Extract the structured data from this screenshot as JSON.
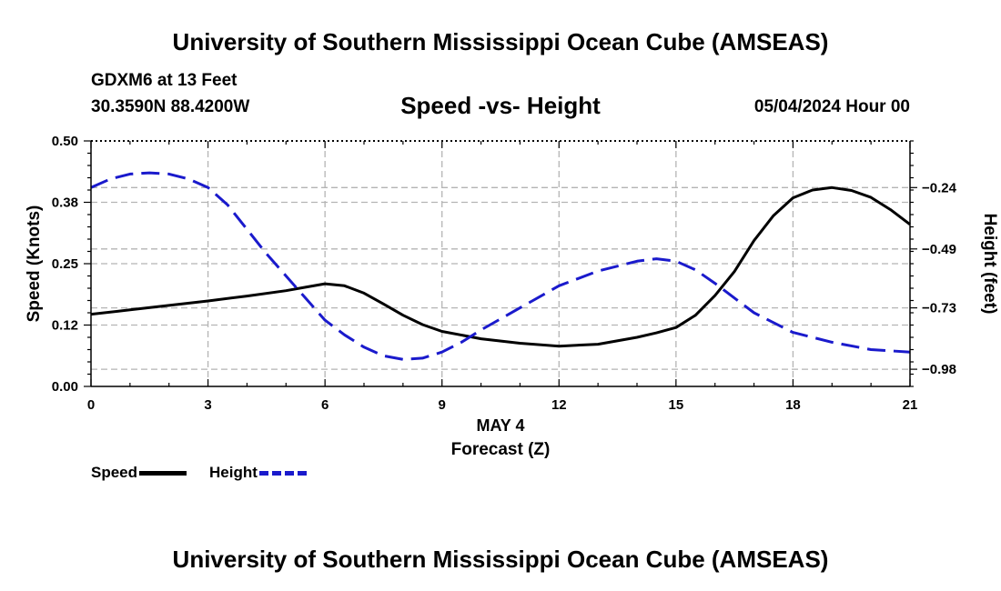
{
  "header": {
    "title": "University of Southern Mississippi Ocean Cube (AMSEAS)",
    "station": "GDXM6 at 13 Feet",
    "coords": "30.3590N  88.4200W",
    "subtitle": "Speed -vs- Height",
    "datestamp": "05/04/2024 Hour 00"
  },
  "footer": {
    "title": "University of Southern Mississippi Ocean Cube (AMSEAS)"
  },
  "legend": {
    "speed_label": "Speed",
    "height_label": "Height"
  },
  "colors": {
    "speed": "#000000",
    "height": "#1a1acc",
    "grid": "#b4b4b4"
  },
  "chart_data": {
    "type": "line",
    "title": "Speed -vs- Height",
    "xlabel": "Forecast (Z)",
    "xlabel_date": "MAY 4",
    "ylabel_left": "Speed (Knots)",
    "ylabel_right": "Height (feet)",
    "xlim": [
      0,
      21
    ],
    "x_ticks": [
      0,
      3,
      6,
      9,
      12,
      15,
      18,
      21
    ],
    "x_tick_labels": [
      "0",
      "3",
      "6",
      "9",
      "12",
      "15",
      "18",
      "21"
    ],
    "ylim_left": [
      0,
      0.5
    ],
    "y_left_ticks": [
      0,
      0.125,
      0.25,
      0.375,
      0.5
    ],
    "y_left_tick_labels": [
      "0.00",
      "0.12",
      "0.25",
      "0.38",
      "0.50"
    ],
    "ylim_right": [
      -1.05,
      -0.05
    ],
    "y_right_ticks": [
      -0.98,
      -0.73,
      -0.49,
      -0.24
    ],
    "y_right_tick_labels": [
      "−0.98",
      "−0.73",
      "−0.49",
      "−0.24"
    ],
    "grid": true,
    "legend_position": "bottom-left",
    "series": [
      {
        "name": "Speed",
        "axis": "left",
        "style": "solid",
        "x": [
          0,
          1,
          2,
          3,
          4,
          5,
          5.5,
          6,
          6.5,
          7,
          7.5,
          8,
          8.5,
          9,
          10,
          11,
          12,
          13,
          14,
          14.5,
          15,
          15.5,
          16,
          16.5,
          17,
          17.5,
          18,
          18.5,
          19,
          19.5,
          20,
          20.5,
          21
        ],
        "values": [
          0.147,
          0.156,
          0.165,
          0.174,
          0.184,
          0.195,
          0.202,
          0.209,
          0.205,
          0.19,
          0.168,
          0.145,
          0.126,
          0.112,
          0.097,
          0.088,
          0.082,
          0.086,
          0.1,
          0.109,
          0.12,
          0.145,
          0.185,
          0.234,
          0.297,
          0.348,
          0.384,
          0.4,
          0.405,
          0.399,
          0.385,
          0.36,
          0.33
        ]
      },
      {
        "name": "Height",
        "axis": "right",
        "style": "dashed",
        "x": [
          0,
          0.5,
          1,
          1.5,
          2,
          2.5,
          3,
          3.5,
          4,
          4.5,
          5,
          5.5,
          6,
          6.5,
          7,
          7.5,
          8,
          8.5,
          9,
          9.5,
          10,
          11,
          12,
          13,
          14,
          14.5,
          15,
          15.5,
          16,
          16.5,
          17,
          18,
          19,
          20,
          21
        ],
        "values": [
          -0.24,
          -0.205,
          -0.185,
          -0.18,
          -0.185,
          -0.205,
          -0.24,
          -0.31,
          -0.41,
          -0.51,
          -0.6,
          -0.69,
          -0.78,
          -0.84,
          -0.89,
          -0.925,
          -0.94,
          -0.935,
          -0.91,
          -0.87,
          -0.82,
          -0.73,
          -0.64,
          -0.58,
          -0.54,
          -0.53,
          -0.54,
          -0.575,
          -0.63,
          -0.69,
          -0.75,
          -0.83,
          -0.87,
          -0.9,
          -0.91
        ]
      }
    ]
  }
}
